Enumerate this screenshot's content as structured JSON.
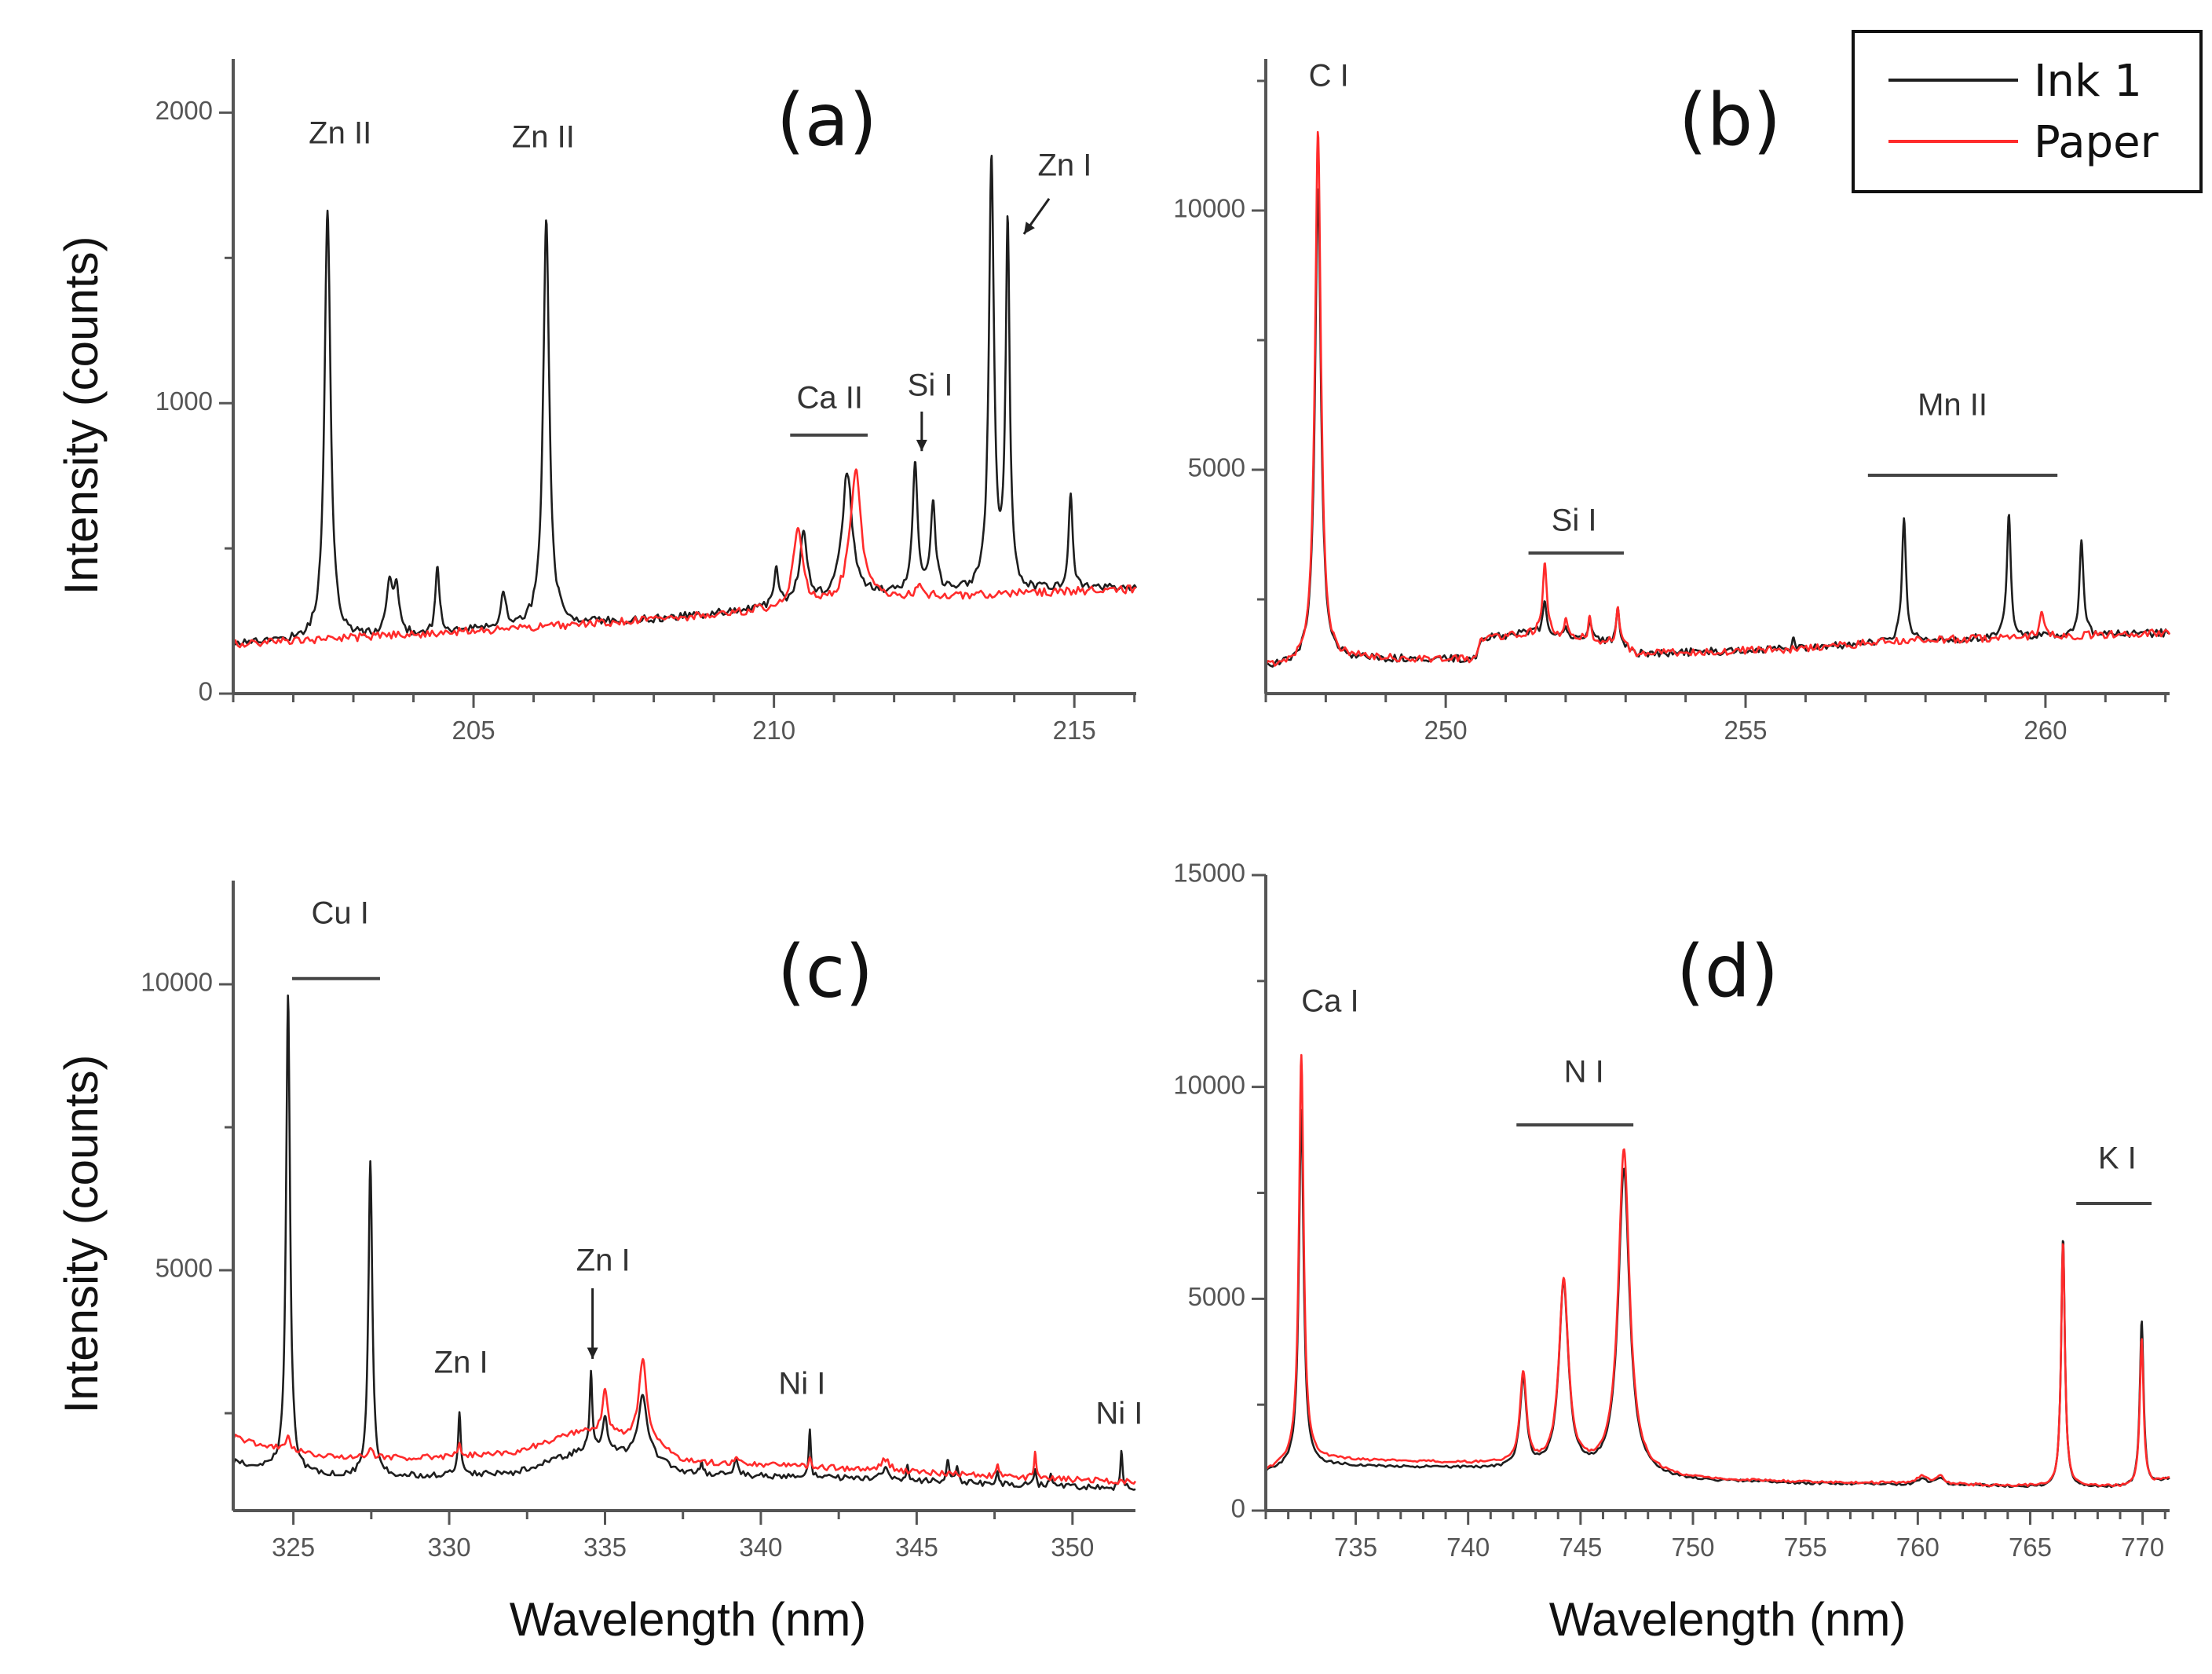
{
  "legend": {
    "items": [
      {
        "label": "Ink 1",
        "color": "#1e1e1e"
      },
      {
        "label": "Paper",
        "color": "#ff2b2b"
      }
    ]
  },
  "chart_data": [
    {
      "type": "line",
      "panel_label": "(a)",
      "xlabel": "",
      "ylabel": "Intensity (counts)",
      "xlim": [
        201.0,
        216.03
      ],
      "ylim": [
        0,
        2185
      ],
      "xticks": [
        205,
        210,
        215
      ],
      "xminor": 1,
      "yticks": [
        0,
        1000,
        2000
      ],
      "yminor": 500,
      "noise": 14,
      "series": [
        {
          "name": "Ink 1",
          "baseline": [
            [
              201,
              175
            ],
            [
              204,
              200
            ],
            [
              206,
              235
            ],
            [
              208,
              255
            ],
            [
              209,
              275
            ],
            [
              210,
              300
            ],
            [
              211.8,
              340
            ],
            [
              216,
              365
            ]
          ],
          "peaks": [
            [
              202.57,
              1480,
              0.12
            ],
            [
              203.6,
              170,
              0.12
            ],
            [
              203.72,
              160,
              0.1
            ],
            [
              204.4,
              220,
              0.08
            ],
            [
              205.5,
              120,
              0.1
            ],
            [
              206.21,
              1400,
              0.12
            ],
            [
              210.04,
              130,
              0.08
            ],
            [
              210.49,
              240,
              0.15
            ],
            [
              211.22,
              430,
              0.2
            ],
            [
              212.35,
              440,
              0.1
            ],
            [
              212.65,
              290,
              0.1
            ],
            [
              213.62,
              1470,
              0.1
            ],
            [
              213.89,
              1240,
              0.08
            ],
            [
              214.94,
              330,
              0.08
            ]
          ]
        },
        {
          "name": "Paper",
          "baseline": [
            [
              201,
              170
            ],
            [
              206,
              228
            ],
            [
              208,
              255
            ],
            [
              210,
              290
            ],
            [
              212,
              330
            ],
            [
              216,
              360
            ]
          ],
          "peaks": [
            [
              210.4,
              280,
              0.18
            ],
            [
              211.36,
              450,
              0.22
            ],
            [
              212.4,
              40,
              0.1
            ]
          ]
        }
      ],
      "annotations": [
        {
          "text": "Zn II",
          "x": 202.78,
          "y": 1923
        },
        {
          "text": "Zn II",
          "x": 206.16,
          "y": 1909
        },
        {
          "text": "Ca II",
          "x": 210.93,
          "y": 1011,
          "bar": [
            210.27,
            211.56,
            890
          ]
        },
        {
          "text": "Si I",
          "x": 212.6,
          "y": 1055,
          "arrow": [
            212.46,
            971,
            212.46,
            835
          ]
        },
        {
          "text": "Zn I",
          "x": 214.84,
          "y": 1812,
          "arrow": [
            214.58,
            1704,
            214.16,
            1582
          ]
        }
      ]
    },
    {
      "type": "line",
      "panel_label": "(b)",
      "xlabel": "",
      "ylabel": "",
      "xlim": [
        247.0,
        262.07
      ],
      "ylim": [
        682,
        12924
      ],
      "xticks": [
        250,
        255,
        260
      ],
      "xminor": 1,
      "yticks": [
        5000,
        10000
      ],
      "yminor": 2500,
      "noise": 75,
      "series": [
        {
          "name": "Ink 1",
          "baseline": [
            [
              247,
              1200
            ],
            [
              248.5,
              1350
            ],
            [
              250.5,
              1350
            ],
            [
              250.6,
              1750
            ],
            [
              251.4,
              1850
            ],
            [
              252.9,
              1650
            ],
            [
              253.2,
              1450
            ],
            [
              256,
              1550
            ],
            [
              257.5,
              1700
            ],
            [
              262,
              1850
            ]
          ],
          "peaks": [
            [
              247.87,
              9100,
              0.12
            ],
            [
              251.65,
              700,
              0.08
            ],
            [
              252.0,
              250,
              0.06
            ],
            [
              252.4,
              400,
              0.06
            ],
            [
              252.87,
              650,
              0.06
            ],
            [
              255.8,
              200,
              0.05
            ],
            [
              257.64,
              2400,
              0.08
            ],
            [
              259.39,
              2350,
              0.08
            ],
            [
              260.6,
              1800,
              0.08
            ]
          ]
        },
        {
          "name": "Paper",
          "baseline": [
            [
              247,
              1200
            ],
            [
              248.5,
              1350
            ],
            [
              250.5,
              1350
            ],
            [
              250.6,
              1750
            ],
            [
              251.4,
              1850
            ],
            [
              252.9,
              1650
            ],
            [
              253.2,
              1450
            ],
            [
              256,
              1550
            ],
            [
              257.5,
              1700
            ],
            [
              262,
              1850
            ]
          ],
          "peaks": [
            [
              247.87,
              10200,
              0.12
            ],
            [
              251.65,
              1400,
              0.08
            ],
            [
              252.0,
              300,
              0.06
            ],
            [
              252.4,
              400,
              0.06
            ],
            [
              252.87,
              700,
              0.06
            ],
            [
              259.94,
              450,
              0.1
            ]
          ]
        }
      ],
      "annotations": [
        {
          "text": "C I",
          "x": 248.05,
          "y": 12560
        },
        {
          "text": "Si I",
          "x": 252.14,
          "y": 3985,
          "bar": [
            251.38,
            252.97,
            3394
          ]
        },
        {
          "text": "Mn II",
          "x": 258.45,
          "y": 6212,
          "bar": [
            257.04,
            260.2,
            4894
          ]
        }
      ]
    },
    {
      "type": "line",
      "panel_label": "(c)",
      "xlabel": "Wavelength (nm)",
      "ylabel": "Intensity (counts)",
      "xlim": [
        323.07,
        352.02
      ],
      "ylim": [
        797,
        11813
      ],
      "xticks": [
        325,
        330,
        335,
        340,
        345,
        350
      ],
      "xminor": 2.5,
      "yticks": [
        5000,
        10000
      ],
      "yminor": 2500,
      "noise": 50,
      "series": [
        {
          "name": "Ink 1",
          "baseline": [
            [
              323,
              1640
            ],
            [
              324,
              1550
            ],
            [
              326,
              1400
            ],
            [
              329,
              1400
            ],
            [
              332,
              1450
            ],
            [
              333.5,
              1700
            ],
            [
              334.3,
              1850
            ],
            [
              336.5,
              1700
            ],
            [
              337.5,
              1450
            ],
            [
              340,
              1400
            ],
            [
              344,
              1350
            ],
            [
              348,
              1250
            ],
            [
              352.1,
              1180
            ]
          ],
          "peaks": [
            [
              324.83,
              8300,
              0.15
            ],
            [
              327.47,
              5500,
              0.15
            ],
            [
              330.33,
              1100,
              0.1
            ],
            [
              334.55,
              1400,
              0.1
            ],
            [
              335.0,
              600,
              0.2
            ],
            [
              336.21,
              1100,
              0.35
            ],
            [
              338.1,
              250,
              0.08
            ],
            [
              339.2,
              250,
              0.15
            ],
            [
              341.57,
              850,
              0.08
            ],
            [
              344.0,
              250,
              0.2
            ],
            [
              344.7,
              250,
              0.08
            ],
            [
              346.0,
              350,
              0.1
            ],
            [
              346.3,
              300,
              0.1
            ],
            [
              347.6,
              250,
              0.08
            ],
            [
              348.8,
              250,
              0.08
            ],
            [
              349.3,
              250,
              0.08
            ],
            [
              351.57,
              650,
              0.08
            ]
          ]
        },
        {
          "name": "Paper",
          "baseline": [
            [
              323,
              2100
            ],
            [
              324,
              1950
            ],
            [
              326,
              1750
            ],
            [
              329,
              1720
            ],
            [
              332,
              1800
            ],
            [
              333.5,
              2050
            ],
            [
              334.3,
              2200
            ],
            [
              336.5,
              2000
            ],
            [
              337.5,
              1650
            ],
            [
              340,
              1600
            ],
            [
              344,
              1500
            ],
            [
              348,
              1380
            ],
            [
              352.1,
              1300
            ]
          ],
          "peaks": [
            [
              324.83,
              250,
              0.15
            ],
            [
              327.47,
              150,
              0.15
            ],
            [
              330.33,
              250,
              0.1
            ],
            [
              335.0,
              800,
              0.2
            ],
            [
              336.21,
              1400,
              0.3
            ],
            [
              339.2,
              100,
              0.15
            ],
            [
              341.57,
              150,
              0.08
            ],
            [
              344.0,
              200,
              0.3
            ],
            [
              347.6,
              200,
              0.08
            ],
            [
              348.8,
              500,
              0.08
            ]
          ]
        }
      ],
      "annotations": [
        {
          "text": "Cu I",
          "x": 326.5,
          "y": 11212,
          "bar": [
            324.96,
            327.78,
            10099
          ]
        },
        {
          "text": "Zn I",
          "x": 330.38,
          "y": 3353
        },
        {
          "text": "Zn I",
          "x": 334.94,
          "y": 5139,
          "arrow": [
            334.6,
            4685,
            334.6,
            3449
          ]
        },
        {
          "text": "Ni I",
          "x": 341.32,
          "y": 2982
        },
        {
          "text": "Ni I",
          "x": 351.5,
          "y": 2460
        }
      ]
    },
    {
      "type": "line",
      "panel_label": "(d)",
      "xlabel": "Wavelength (nm)",
      "ylabel": "",
      "xlim": [
        731.0,
        771.2
      ],
      "ylim": [
        0,
        15000
      ],
      "xticks": [
        735,
        740,
        745,
        750,
        755,
        760,
        765,
        770
      ],
      "xminor": 1,
      "yticks": [
        0,
        5000,
        10000,
        15000
      ],
      "yminor": 2500,
      "noise": 30,
      "series": [
        {
          "name": "Ink 1",
          "baseline": [
            [
              731,
              900
            ],
            [
              732,
              1030
            ],
            [
              733,
              1080
            ],
            [
              737,
              1030
            ],
            [
              741,
              980
            ],
            [
              745,
              900
            ],
            [
              750,
              700
            ],
            [
              755,
              640
            ],
            [
              760,
              610
            ],
            [
              763,
              590
            ],
            [
              766,
              540
            ],
            [
              770,
              540
            ],
            [
              771.3,
              760
            ]
          ],
          "peaks": [
            [
              732.58,
              8400,
              0.25
            ],
            [
              742.45,
              2100,
              0.35
            ],
            [
              744.25,
              4400,
              0.5
            ],
            [
              746.93,
              7200,
              0.6
            ],
            [
              760.2,
              150,
              0.5
            ],
            [
              761.0,
              150,
              0.4
            ],
            [
              766.46,
              5900,
              0.2
            ],
            [
              769.96,
              3950,
              0.2
            ]
          ]
        },
        {
          "name": "Paper",
          "baseline": [
            [
              731,
              920
            ],
            [
              732,
              1120
            ],
            [
              733,
              1220
            ],
            [
              737,
              1160
            ],
            [
              741,
              1100
            ],
            [
              745,
              960
            ],
            [
              750,
              740
            ],
            [
              755,
              670
            ],
            [
              760,
              640
            ],
            [
              763,
              600
            ],
            [
              766,
              560
            ],
            [
              770,
              560
            ],
            [
              771.3,
              770
            ]
          ],
          "peaks": [
            [
              732.58,
              9600,
              0.25
            ],
            [
              742.45,
              2150,
              0.35
            ],
            [
              744.25,
              4400,
              0.5
            ],
            [
              746.93,
              7600,
              0.6
            ],
            [
              760.2,
              180,
              0.5
            ],
            [
              761.0,
              180,
              0.4
            ],
            [
              766.46,
              5800,
              0.2
            ],
            [
              769.96,
              3500,
              0.2
            ]
          ]
        }
      ],
      "annotations": [
        {
          "text": "Ca I",
          "x": 733.86,
          "y": 11977
        },
        {
          "text": "N I",
          "x": 745.15,
          "y": 10308,
          "bar": [
            742.15,
            747.35,
            9103
          ]
        },
        {
          "text": "K I",
          "x": 768.87,
          "y": 8269,
          "bar": [
            767.05,
            770.4,
            7249
          ]
        }
      ]
    }
  ]
}
